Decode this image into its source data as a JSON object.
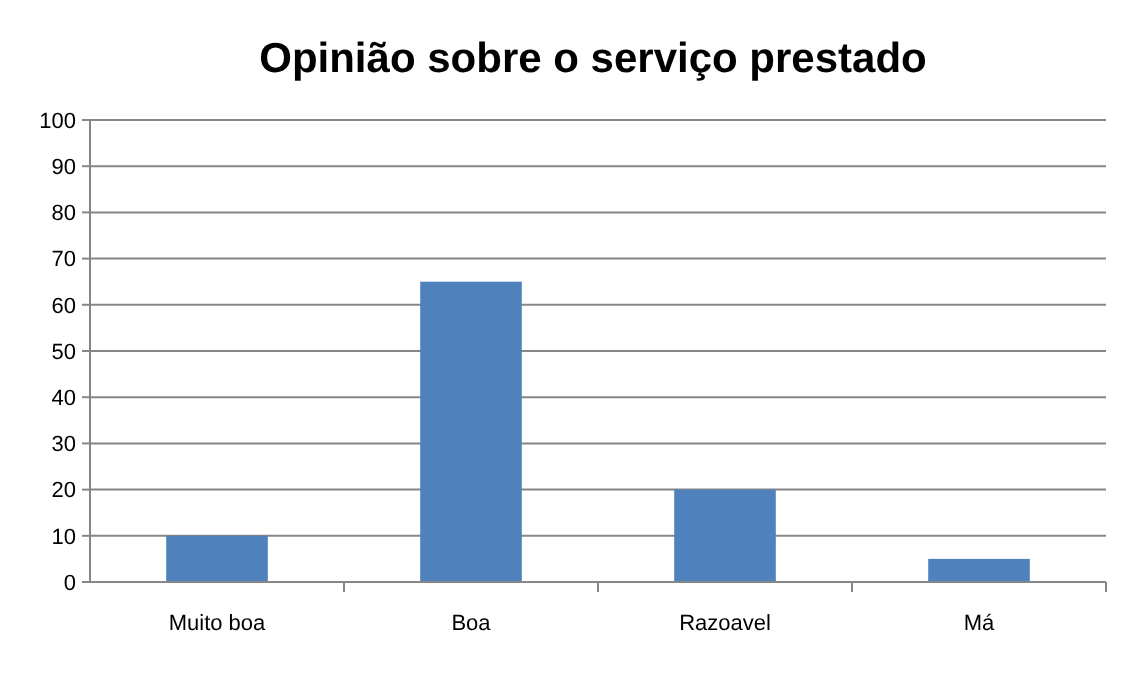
{
  "chart_data": {
    "type": "bar",
    "title": "Opinião sobre o serviço prestado",
    "categories": [
      "Muito boa",
      "Boa",
      "Razoavel",
      "Má"
    ],
    "values": [
      10,
      65,
      20,
      5
    ],
    "color": "#4f81bd",
    "ylim": [
      0,
      100
    ],
    "yticks": [
      0,
      10,
      20,
      30,
      40,
      50,
      60,
      70,
      80,
      90,
      100
    ],
    "grid": "y"
  }
}
